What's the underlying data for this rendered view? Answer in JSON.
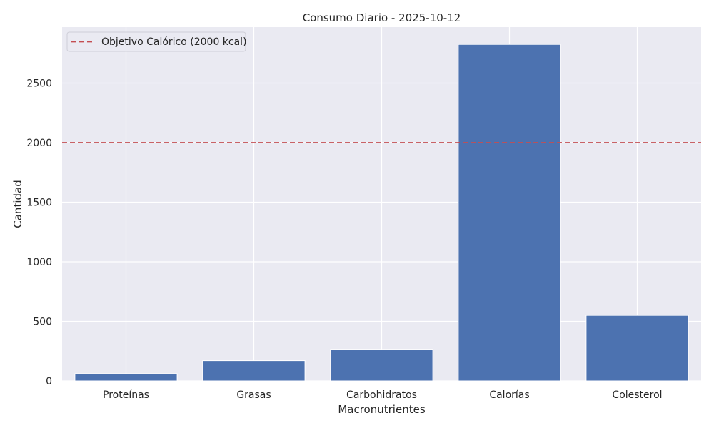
{
  "chart_data": {
    "type": "bar",
    "title": "Consumo Diario - 2025-10-12",
    "xlabel": "Macronutrientes",
    "ylabel": "Cantidad",
    "categories": [
      "Proteínas",
      "Grasas",
      "Carbohidratos",
      "Calorías",
      "Colesterol"
    ],
    "values": [
      60,
      170,
      265,
      2825,
      550
    ],
    "ylim": [
      0,
      2970
    ],
    "yticks": [
      0,
      500,
      1000,
      1500,
      2000,
      2500
    ],
    "grid": true,
    "bar_color": "#4c72b0",
    "background_color": "#eaeaf2",
    "reference_line": {
      "value": 2000,
      "label": "Objetivo Calórico (2000 kcal)",
      "color": "#c44e52",
      "style": "dashed"
    },
    "legend_position": "top-left"
  }
}
